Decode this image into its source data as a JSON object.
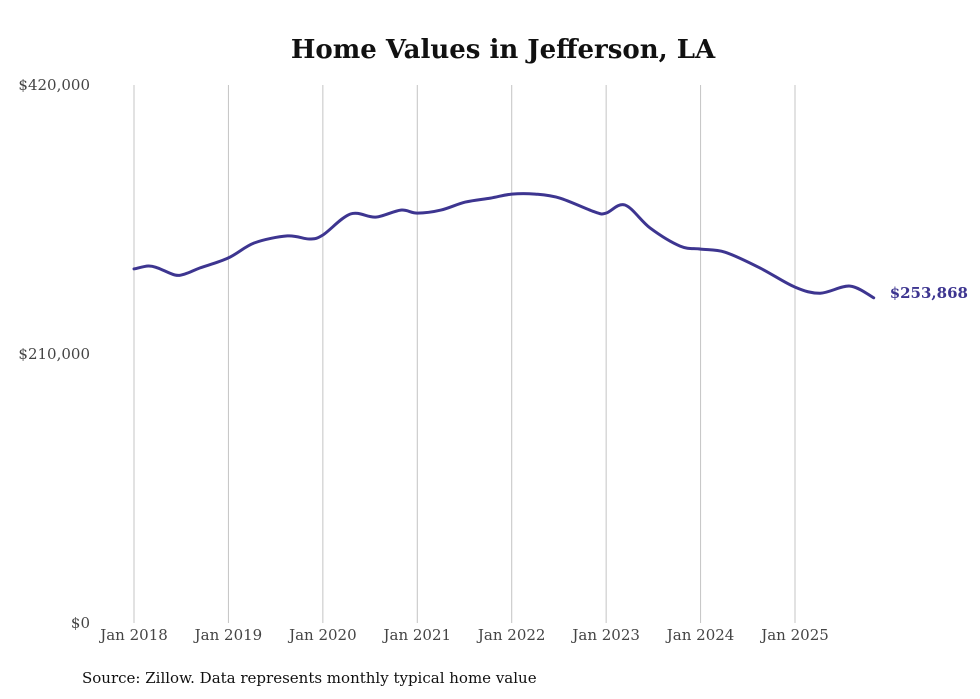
{
  "chart_data": {
    "type": "line",
    "title": "Home Values in Jefferson, LA",
    "xlabel": "",
    "ylabel": "",
    "ylim": [
      0,
      420000
    ],
    "yticks": [
      0,
      210000,
      420000
    ],
    "ytick_labels": [
      "$0",
      "$210,000",
      "$420,000"
    ],
    "xticks": [
      0,
      12,
      24,
      36,
      48,
      60,
      72,
      84
    ],
    "xtick_labels": [
      "Jan 2018",
      "Jan 2019",
      "Jan 2020",
      "Jan 2021",
      "Jan 2022",
      "Jan 2023",
      "Jan 2024",
      "Jan 2025"
    ],
    "x_unit": "months since Jan 2018",
    "xlim": [
      0,
      94
    ],
    "grid": "vertical",
    "series": [
      {
        "name": "Typical home value",
        "color": "#3d3590",
        "x": [
          0,
          1.8,
          3,
          5.2,
          6.5,
          8.4,
          12,
          15.3,
          19.5,
          22.3,
          24,
          27.5,
          30.7,
          33.9,
          36,
          39,
          42.1,
          45.3,
          48,
          51,
          54.1,
          58.6,
          60,
          62.4,
          65.6,
          69.4,
          72,
          75.1,
          79.6,
          84,
          87.2,
          91,
          94
        ],
        "values": [
          276400,
          278700,
          277200,
          271700,
          272500,
          277200,
          285000,
          296700,
          302200,
          299800,
          302900,
          319300,
          316900,
          322300,
          320000,
          322300,
          328600,
          331700,
          334800,
          334800,
          331700,
          320800,
          320000,
          326300,
          308300,
          294200,
          291900,
          289500,
          277000,
          262200,
          257500,
          263000,
          253868
        ]
      }
    ],
    "annotations": [
      {
        "text": "$253,868",
        "at": "last point"
      }
    ],
    "source": "Source: Zillow. Data represents monthly typical home value"
  }
}
